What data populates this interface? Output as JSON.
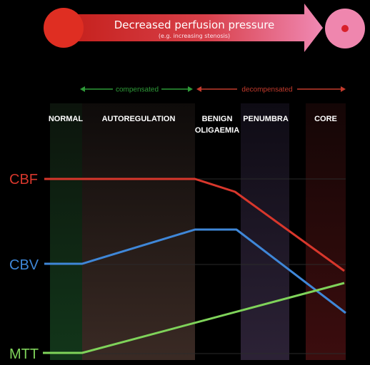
{
  "header": {
    "title": "Decreased perfusion pressure",
    "subtitle": "(e.g. increasing stenosis)"
  },
  "phases": {
    "compensated": "compensated",
    "decompensated": "decompensated"
  },
  "stages": [
    {
      "line1": "NORMAL",
      "line2": ""
    },
    {
      "line1": "AUTOREGULATION",
      "line2": ""
    },
    {
      "line1": "BENIGN",
      "line2": "OLIGAEMIA"
    },
    {
      "line1": "PENUMBRA",
      "line2": ""
    },
    {
      "line1": "CORE",
      "line2": ""
    }
  ],
  "series": [
    {
      "name": "CBF",
      "color": "#d8372c"
    },
    {
      "name": "CBV",
      "color": "#3f87d8"
    },
    {
      "name": "MTT",
      "color": "#7fd35a"
    }
  ],
  "colors": {
    "background": "#000000",
    "compensated": "#2e9a38",
    "decompensated": "#c23a2c",
    "arrow_start": "#d42a22",
    "arrow_end": "#f07aa8"
  }
}
